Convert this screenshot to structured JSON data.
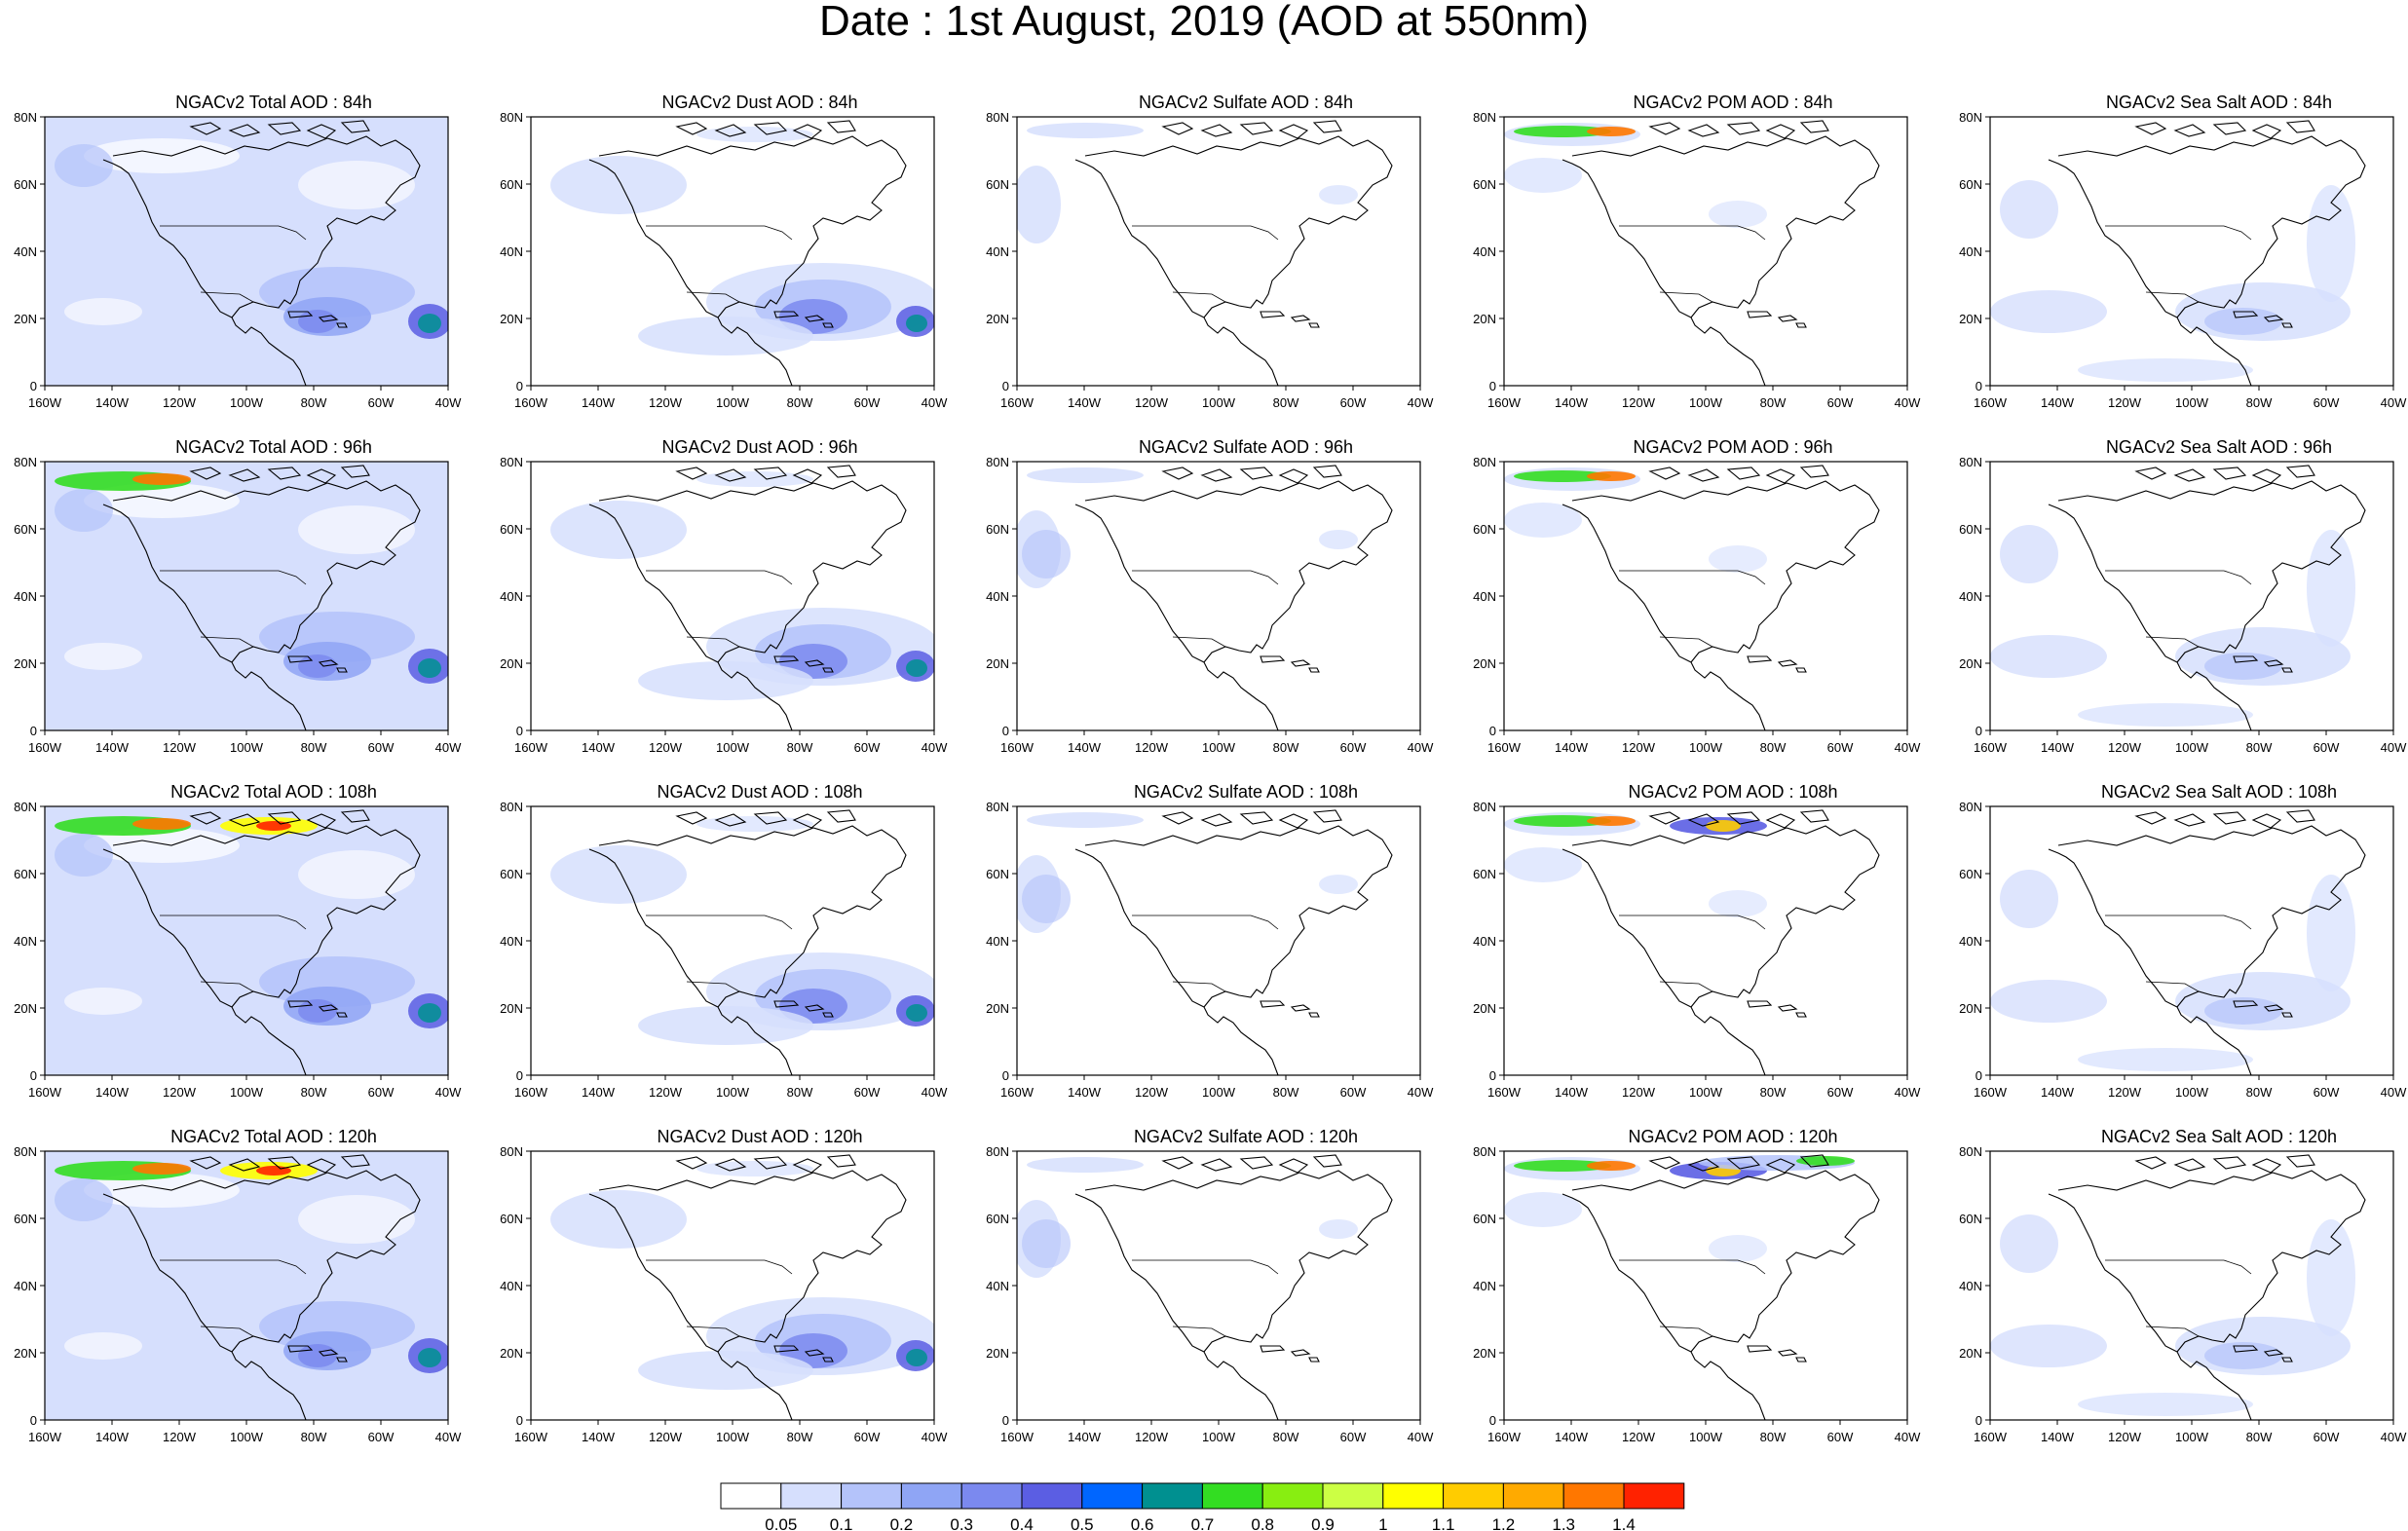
{
  "figure": {
    "title": "Date : 1st August, 2019 (AOD at 550nm)"
  },
  "map": {
    "y_tick_labels": [
      "80N",
      "60N",
      "40N",
      "20N",
      "0"
    ],
    "x_tick_labels": [
      "160W",
      "140W",
      "120W",
      "100W",
      "80W",
      "60W",
      "40W"
    ],
    "lat_range": [
      0,
      80
    ],
    "lon_range": [
      -160,
      -40
    ],
    "projection": "cylindrical equidistant",
    "basemap": "coastlines and national borders (North America)"
  },
  "panels": [
    {
      "row": 0,
      "col": 0,
      "title": "NGACv2 Total AOD : 84h",
      "species": "Total",
      "forecast_hour": 84
    },
    {
      "row": 0,
      "col": 1,
      "title": "NGACv2 Dust AOD : 84h",
      "species": "Dust",
      "forecast_hour": 84
    },
    {
      "row": 0,
      "col": 2,
      "title": "NGACv2 Sulfate AOD : 84h",
      "species": "Sulfate",
      "forecast_hour": 84
    },
    {
      "row": 0,
      "col": 3,
      "title": "NGACv2 POM AOD : 84h",
      "species": "POM",
      "forecast_hour": 84
    },
    {
      "row": 0,
      "col": 4,
      "title": "NGACv2 Sea Salt AOD : 84h",
      "species": "Sea Salt",
      "forecast_hour": 84
    },
    {
      "row": 1,
      "col": 0,
      "title": "NGACv2 Total AOD : 96h",
      "species": "Total",
      "forecast_hour": 96
    },
    {
      "row": 1,
      "col": 1,
      "title": "NGACv2 Dust AOD : 96h",
      "species": "Dust",
      "forecast_hour": 96
    },
    {
      "row": 1,
      "col": 2,
      "title": "NGACv2 Sulfate AOD : 96h",
      "species": "Sulfate",
      "forecast_hour": 96
    },
    {
      "row": 1,
      "col": 3,
      "title": "NGACv2 POM AOD : 96h",
      "species": "POM",
      "forecast_hour": 96
    },
    {
      "row": 1,
      "col": 4,
      "title": "NGACv2 Sea Salt AOD : 96h",
      "species": "Sea Salt",
      "forecast_hour": 96
    },
    {
      "row": 2,
      "col": 0,
      "title": "NGACv2 Total AOD : 108h",
      "species": "Total",
      "forecast_hour": 108
    },
    {
      "row": 2,
      "col": 1,
      "title": "NGACv2 Dust AOD : 108h",
      "species": "Dust",
      "forecast_hour": 108
    },
    {
      "row": 2,
      "col": 2,
      "title": "NGACv2 Sulfate AOD : 108h",
      "species": "Sulfate",
      "forecast_hour": 108
    },
    {
      "row": 2,
      "col": 3,
      "title": "NGACv2 POM AOD : 108h",
      "species": "POM",
      "forecast_hour": 108
    },
    {
      "row": 2,
      "col": 4,
      "title": "NGACv2 Sea Salt AOD : 108h",
      "species": "Sea Salt",
      "forecast_hour": 108
    },
    {
      "row": 3,
      "col": 0,
      "title": "NGACv2 Total AOD : 120h",
      "species": "Total",
      "forecast_hour": 120
    },
    {
      "row": 3,
      "col": 1,
      "title": "NGACv2 Dust AOD : 120h",
      "species": "Dust",
      "forecast_hour": 120
    },
    {
      "row": 3,
      "col": 2,
      "title": "NGACv2 Sulfate AOD : 120h",
      "species": "Sulfate",
      "forecast_hour": 120
    },
    {
      "row": 3,
      "col": 3,
      "title": "NGACv2 POM AOD : 120h",
      "species": "POM",
      "forecast_hour": 120
    },
    {
      "row": 3,
      "col": 4,
      "title": "NGACv2 Sea Salt  AOD : 120h",
      "species": "Sea Salt",
      "forecast_hour": 120
    }
  ],
  "colorbar": {
    "labels": [
      "0.05",
      "0.1",
      "0.2",
      "0.3",
      "0.4",
      "0.5",
      "0.6",
      "0.7",
      "0.8",
      "0.9",
      "1",
      "1.1",
      "1.2",
      "1.3",
      "1.4"
    ],
    "colors": [
      "#ffffff",
      "#d6dffd",
      "#b4c3fa",
      "#8fa5f5",
      "#7b89ef",
      "#5b5ee3",
      "#0066ff",
      "#009090",
      "#33dd22",
      "#88ee11",
      "#ccff44",
      "#ffff00",
      "#ffcc00",
      "#ffaa00",
      "#ff7700",
      "#ff2200"
    ]
  }
}
